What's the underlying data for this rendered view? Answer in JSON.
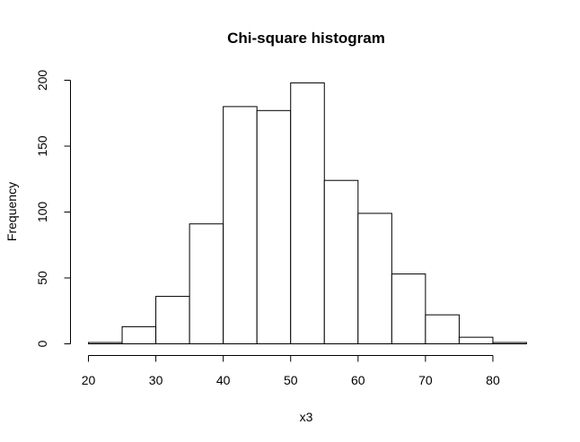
{
  "chart_data": {
    "type": "bar",
    "title": "Chi-square histogram",
    "xlabel": "x3",
    "ylabel": "Frequency",
    "bin_edges": [
      20,
      25,
      30,
      35,
      40,
      45,
      50,
      55,
      60,
      65,
      70,
      75,
      80,
      85
    ],
    "values": [
      1,
      13,
      36,
      91,
      180,
      177,
      198,
      124,
      99,
      53,
      22,
      5,
      1
    ],
    "xlim": [
      20,
      85
    ],
    "ylim": [
      0,
      200
    ],
    "x_ticks": [
      20,
      30,
      40,
      50,
      60,
      70,
      80
    ],
    "y_ticks": [
      0,
      50,
      100,
      150,
      200
    ],
    "grid": false,
    "colors": {
      "bar_fill": "#ffffff",
      "bar_stroke": "#000000"
    }
  }
}
